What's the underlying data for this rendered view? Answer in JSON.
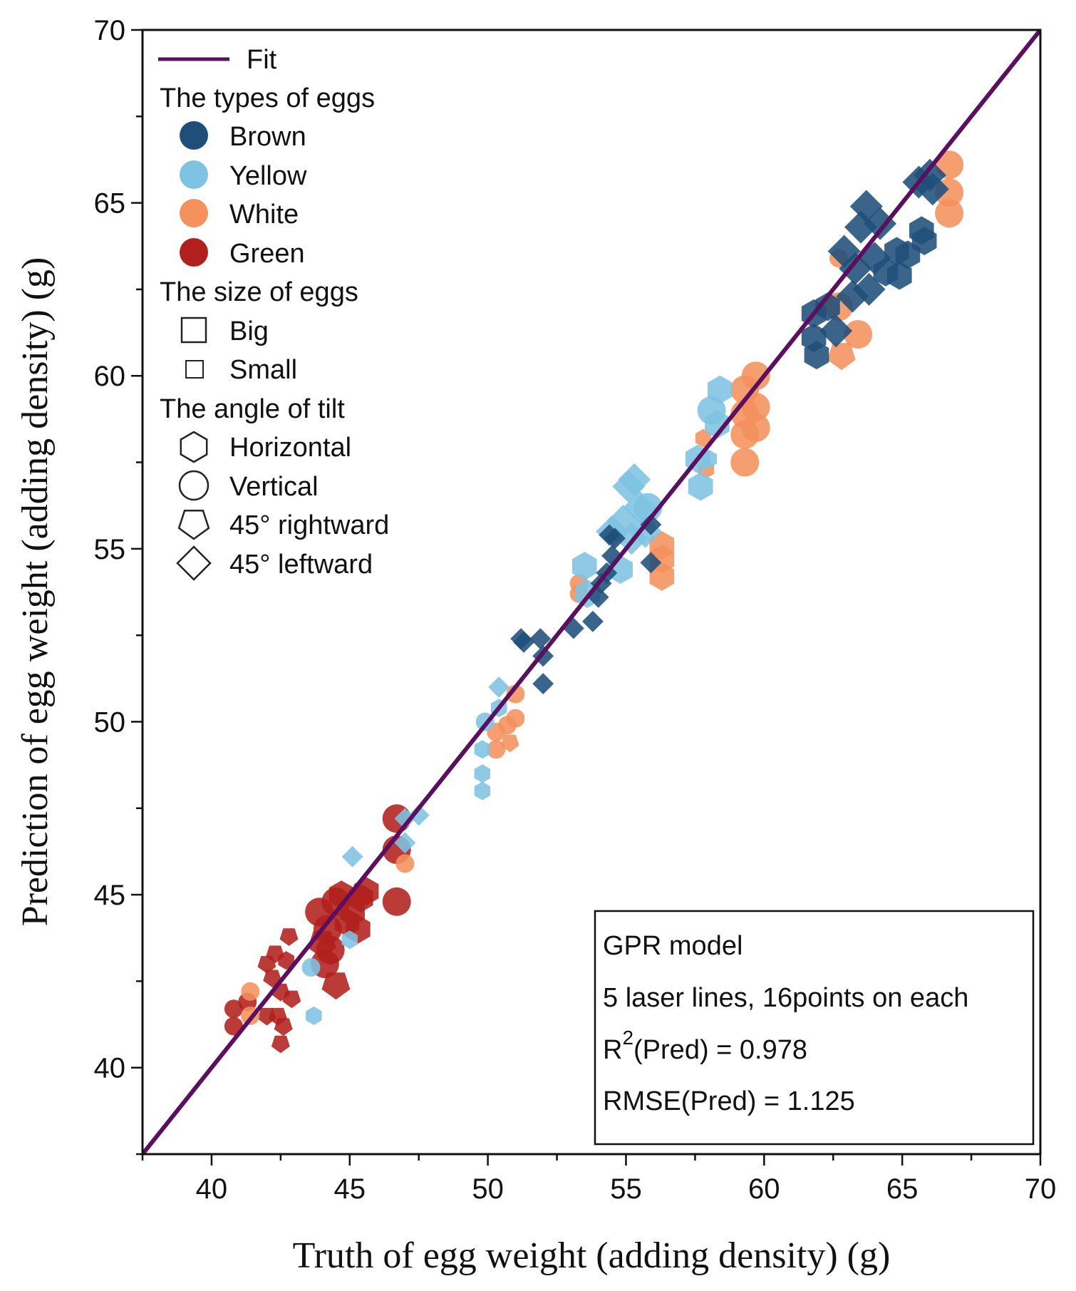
{
  "chart_data": {
    "type": "scatter",
    "xlabel": "Truth of egg weight (adding density) (g)",
    "ylabel": "Prediction of egg weight (adding density) (g)",
    "xlim": [
      37.5,
      70
    ],
    "ylim": [
      37.5,
      70
    ],
    "xticks": [
      40,
      45,
      50,
      55,
      60,
      65,
      70
    ],
    "yticks": [
      40,
      45,
      50,
      55,
      60,
      65,
      70
    ],
    "fit": {
      "label": "Fit",
      "x": [
        37.5,
        70
      ],
      "y": [
        37.5,
        70
      ],
      "color": "#5a0f5f"
    },
    "legend": {
      "types_title": "The types of eggs",
      "types": [
        {
          "label": "Brown",
          "color": "#1f4e79"
        },
        {
          "label": "Yellow",
          "color": "#7ec3e3"
        },
        {
          "label": "White",
          "color": "#f4915c"
        },
        {
          "label": "Green",
          "color": "#b0201c"
        }
      ],
      "size_title": "The size of eggs",
      "sizes": [
        {
          "label": "Big",
          "size": "big"
        },
        {
          "label": "Small",
          "size": "small"
        }
      ],
      "angle_title": "The angle of tilt",
      "angles": [
        {
          "label": "Horizontal",
          "shape": "hexagon"
        },
        {
          "label": "Vertical",
          "shape": "circle"
        },
        {
          "label": "45° rightward",
          "shape": "pentagon"
        },
        {
          "label": "45° leftward",
          "shape": "diamond"
        }
      ]
    },
    "stats": {
      "model": "GPR model",
      "setup": "5 laser lines, 16points on each",
      "r2_prefix": "R",
      "r2_sup": "2",
      "r2_rest": "(Pred) = 0.978",
      "rmse": "RMSE(Pred) = 1.125"
    },
    "series": [
      {
        "name": "Green",
        "color": "#b0201c",
        "points": [
          {
            "x": 40.8,
            "y": 41.7,
            "shape": "circle",
            "size": "small"
          },
          {
            "x": 40.8,
            "y": 41.2,
            "shape": "circle",
            "size": "small"
          },
          {
            "x": 41.3,
            "y": 41.9,
            "shape": "circle",
            "size": "small"
          },
          {
            "x": 42.0,
            "y": 43.0,
            "shape": "pentagon",
            "size": "small"
          },
          {
            "x": 42.2,
            "y": 42.6,
            "shape": "pentagon",
            "size": "small"
          },
          {
            "x": 42.3,
            "y": 43.3,
            "shape": "pentagon",
            "size": "small"
          },
          {
            "x": 42.5,
            "y": 42.2,
            "shape": "pentagon",
            "size": "small"
          },
          {
            "x": 42.4,
            "y": 41.5,
            "shape": "pentagon",
            "size": "small"
          },
          {
            "x": 42.6,
            "y": 41.2,
            "shape": "pentagon",
            "size": "small"
          },
          {
            "x": 42.5,
            "y": 40.7,
            "shape": "pentagon",
            "size": "small"
          },
          {
            "x": 42.8,
            "y": 43.8,
            "shape": "pentagon",
            "size": "small"
          },
          {
            "x": 42.9,
            "y": 42.0,
            "shape": "pentagon",
            "size": "small"
          },
          {
            "x": 42.0,
            "y": 41.5,
            "shape": "pentagon",
            "size": "small"
          },
          {
            "x": 42.7,
            "y": 43.1,
            "shape": "hexagon",
            "size": "small"
          },
          {
            "x": 43.9,
            "y": 44.5,
            "shape": "circle",
            "size": "big"
          },
          {
            "x": 44.1,
            "y": 43.0,
            "shape": "circle",
            "size": "big"
          },
          {
            "x": 44.3,
            "y": 43.4,
            "shape": "circle",
            "size": "big"
          },
          {
            "x": 44.5,
            "y": 44.8,
            "shape": "circle",
            "size": "big"
          },
          {
            "x": 44.2,
            "y": 44.0,
            "shape": "circle",
            "size": "big"
          },
          {
            "x": 44.9,
            "y": 44.2,
            "shape": "hexagon",
            "size": "big"
          },
          {
            "x": 45.1,
            "y": 44.5,
            "shape": "hexagon",
            "size": "big"
          },
          {
            "x": 45.4,
            "y": 44.9,
            "shape": "hexagon",
            "size": "big"
          },
          {
            "x": 45.6,
            "y": 45.1,
            "shape": "hexagon",
            "size": "big"
          },
          {
            "x": 45.3,
            "y": 44.0,
            "shape": "hexagon",
            "size": "big"
          },
          {
            "x": 44.7,
            "y": 45.0,
            "shape": "hexagon",
            "size": "big"
          },
          {
            "x": 44.5,
            "y": 42.4,
            "shape": "pentagon",
            "size": "big"
          },
          {
            "x": 44.0,
            "y": 43.6,
            "shape": "pentagon",
            "size": "big"
          },
          {
            "x": 46.7,
            "y": 47.2,
            "shape": "circle",
            "size": "big"
          },
          {
            "x": 46.7,
            "y": 46.3,
            "shape": "circle",
            "size": "big"
          },
          {
            "x": 46.7,
            "y": 44.8,
            "shape": "circle",
            "size": "big"
          }
        ]
      },
      {
        "name": "White",
        "color": "#f4915c",
        "points": [
          {
            "x": 41.4,
            "y": 42.2,
            "shape": "circle",
            "size": "small"
          },
          {
            "x": 41.4,
            "y": 41.5,
            "shape": "circle",
            "size": "small"
          },
          {
            "x": 47.0,
            "y": 45.9,
            "shape": "circle",
            "size": "small"
          },
          {
            "x": 50.3,
            "y": 49.7,
            "shape": "circle",
            "size": "small"
          },
          {
            "x": 50.3,
            "y": 49.2,
            "shape": "circle",
            "size": "small"
          },
          {
            "x": 50.7,
            "y": 49.9,
            "shape": "circle",
            "size": "small"
          },
          {
            "x": 51.0,
            "y": 50.8,
            "shape": "circle",
            "size": "small"
          },
          {
            "x": 51.0,
            "y": 50.1,
            "shape": "circle",
            "size": "small"
          },
          {
            "x": 50.8,
            "y": 49.4,
            "shape": "pentagon",
            "size": "small"
          },
          {
            "x": 53.3,
            "y": 54.0,
            "shape": "circle",
            "size": "small"
          },
          {
            "x": 53.3,
            "y": 53.7,
            "shape": "circle",
            "size": "small"
          },
          {
            "x": 56.3,
            "y": 55.1,
            "shape": "hexagon",
            "size": "big"
          },
          {
            "x": 56.3,
            "y": 54.7,
            "shape": "hexagon",
            "size": "big"
          },
          {
            "x": 56.3,
            "y": 54.2,
            "shape": "hexagon",
            "size": "big"
          },
          {
            "x": 57.8,
            "y": 58.2,
            "shape": "hexagon",
            "size": "small"
          },
          {
            "x": 57.9,
            "y": 57.3,
            "shape": "hexagon",
            "size": "small"
          },
          {
            "x": 59.3,
            "y": 59.6,
            "shape": "circle",
            "size": "big"
          },
          {
            "x": 59.3,
            "y": 58.9,
            "shape": "circle",
            "size": "big"
          },
          {
            "x": 59.3,
            "y": 58.3,
            "shape": "circle",
            "size": "big"
          },
          {
            "x": 59.3,
            "y": 57.5,
            "shape": "circle",
            "size": "big"
          },
          {
            "x": 59.7,
            "y": 60.0,
            "shape": "circle",
            "size": "big"
          },
          {
            "x": 59.7,
            "y": 59.1,
            "shape": "circle",
            "size": "big"
          },
          {
            "x": 59.7,
            "y": 58.5,
            "shape": "circle",
            "size": "big"
          },
          {
            "x": 62.7,
            "y": 63.4,
            "shape": "circle",
            "size": "small"
          },
          {
            "x": 62.7,
            "y": 62.0,
            "shape": "circle",
            "size": "big"
          },
          {
            "x": 62.8,
            "y": 60.6,
            "shape": "pentagon",
            "size": "big"
          },
          {
            "x": 63.4,
            "y": 61.2,
            "shape": "circle",
            "size": "big"
          },
          {
            "x": 66.7,
            "y": 66.1,
            "shape": "circle",
            "size": "big"
          },
          {
            "x": 66.7,
            "y": 65.3,
            "shape": "circle",
            "size": "big"
          },
          {
            "x": 66.7,
            "y": 64.7,
            "shape": "circle",
            "size": "big"
          }
        ]
      },
      {
        "name": "Yellow",
        "color": "#7ec3e3",
        "points": [
          {
            "x": 43.7,
            "y": 41.5,
            "shape": "hexagon",
            "size": "small"
          },
          {
            "x": 43.6,
            "y": 42.9,
            "shape": "circle",
            "size": "small"
          },
          {
            "x": 45.0,
            "y": 43.7,
            "shape": "hexagon",
            "size": "small"
          },
          {
            "x": 45.1,
            "y": 46.1,
            "shape": "diamond",
            "size": "small"
          },
          {
            "x": 47.0,
            "y": 46.5,
            "shape": "diamond",
            "size": "small"
          },
          {
            "x": 47.0,
            "y": 47.2,
            "shape": "diamond",
            "size": "small"
          },
          {
            "x": 47.5,
            "y": 47.3,
            "shape": "diamond",
            "size": "small"
          },
          {
            "x": 49.8,
            "y": 48.0,
            "shape": "hexagon",
            "size": "small"
          },
          {
            "x": 49.8,
            "y": 48.5,
            "shape": "hexagon",
            "size": "small"
          },
          {
            "x": 49.8,
            "y": 49.2,
            "shape": "hexagon",
            "size": "small"
          },
          {
            "x": 49.9,
            "y": 50.0,
            "shape": "circle",
            "size": "small"
          },
          {
            "x": 50.4,
            "y": 50.4,
            "shape": "hexagon",
            "size": "small"
          },
          {
            "x": 50.4,
            "y": 51.0,
            "shape": "diamond",
            "size": "small"
          },
          {
            "x": 53.5,
            "y": 54.5,
            "shape": "hexagon",
            "size": "big"
          },
          {
            "x": 53.6,
            "y": 53.7,
            "shape": "hexagon",
            "size": "big"
          },
          {
            "x": 54.5,
            "y": 55.5,
            "shape": "diamond",
            "size": "big"
          },
          {
            "x": 54.9,
            "y": 55.8,
            "shape": "diamond",
            "size": "big"
          },
          {
            "x": 55.1,
            "y": 56.8,
            "shape": "diamond",
            "size": "big"
          },
          {
            "x": 55.3,
            "y": 57.0,
            "shape": "diamond",
            "size": "big"
          },
          {
            "x": 55.2,
            "y": 55.3,
            "shape": "diamond",
            "size": "big"
          },
          {
            "x": 55.5,
            "y": 56.2,
            "shape": "diamond",
            "size": "big"
          },
          {
            "x": 55.7,
            "y": 55.5,
            "shape": "diamond",
            "size": "big"
          },
          {
            "x": 54.8,
            "y": 54.4,
            "shape": "hexagon",
            "size": "big"
          },
          {
            "x": 55.8,
            "y": 56.2,
            "shape": "circle",
            "size": "big"
          },
          {
            "x": 57.6,
            "y": 57.6,
            "shape": "hexagon",
            "size": "big"
          },
          {
            "x": 57.7,
            "y": 56.8,
            "shape": "hexagon",
            "size": "big"
          },
          {
            "x": 58.1,
            "y": 59.0,
            "shape": "circle",
            "size": "big"
          },
          {
            "x": 58.3,
            "y": 58.6,
            "shape": "hexagon",
            "size": "big"
          },
          {
            "x": 58.4,
            "y": 59.6,
            "shape": "hexagon",
            "size": "big"
          },
          {
            "x": 58.0,
            "y": 57.6,
            "shape": "hexagon",
            "size": "small"
          }
        ]
      },
      {
        "name": "Brown",
        "color": "#1f4e79",
        "points": [
          {
            "x": 51.2,
            "y": 52.4,
            "shape": "diamond",
            "size": "small"
          },
          {
            "x": 51.3,
            "y": 52.3,
            "shape": "diamond",
            "size": "small"
          },
          {
            "x": 51.9,
            "y": 52.4,
            "shape": "diamond",
            "size": "small"
          },
          {
            "x": 52.0,
            "y": 51.1,
            "shape": "diamond",
            "size": "small"
          },
          {
            "x": 52.0,
            "y": 51.9,
            "shape": "diamond",
            "size": "small"
          },
          {
            "x": 53.1,
            "y": 52.7,
            "shape": "diamond",
            "size": "small"
          },
          {
            "x": 53.8,
            "y": 52.9,
            "shape": "diamond",
            "size": "small"
          },
          {
            "x": 54.0,
            "y": 53.6,
            "shape": "diamond",
            "size": "small"
          },
          {
            "x": 54.1,
            "y": 54.0,
            "shape": "diamond",
            "size": "small"
          },
          {
            "x": 54.3,
            "y": 54.3,
            "shape": "diamond",
            "size": "small"
          },
          {
            "x": 54.5,
            "y": 54.8,
            "shape": "diamond",
            "size": "small"
          },
          {
            "x": 54.6,
            "y": 55.3,
            "shape": "diamond",
            "size": "small"
          },
          {
            "x": 54.4,
            "y": 55.4,
            "shape": "diamond",
            "size": "small"
          },
          {
            "x": 55.9,
            "y": 55.7,
            "shape": "diamond",
            "size": "small"
          },
          {
            "x": 55.9,
            "y": 54.6,
            "shape": "diamond",
            "size": "small"
          },
          {
            "x": 61.8,
            "y": 61.8,
            "shape": "hexagon",
            "size": "big"
          },
          {
            "x": 61.8,
            "y": 61.1,
            "shape": "hexagon",
            "size": "big"
          },
          {
            "x": 61.9,
            "y": 60.6,
            "shape": "hexagon",
            "size": "big"
          },
          {
            "x": 62.3,
            "y": 62.0,
            "shape": "hexagon",
            "size": "big"
          },
          {
            "x": 62.6,
            "y": 61.3,
            "shape": "diamond",
            "size": "big"
          },
          {
            "x": 62.9,
            "y": 63.6,
            "shape": "diamond",
            "size": "big"
          },
          {
            "x": 63.2,
            "y": 62.3,
            "shape": "diamond",
            "size": "big"
          },
          {
            "x": 63.3,
            "y": 63.1,
            "shape": "diamond",
            "size": "big"
          },
          {
            "x": 63.5,
            "y": 64.3,
            "shape": "diamond",
            "size": "big"
          },
          {
            "x": 63.7,
            "y": 64.9,
            "shape": "diamond",
            "size": "big"
          },
          {
            "x": 63.8,
            "y": 62.5,
            "shape": "diamond",
            "size": "big"
          },
          {
            "x": 64.0,
            "y": 63.4,
            "shape": "diamond",
            "size": "big"
          },
          {
            "x": 64.2,
            "y": 64.4,
            "shape": "diamond",
            "size": "big"
          },
          {
            "x": 64.4,
            "y": 63.0,
            "shape": "hexagon",
            "size": "big"
          },
          {
            "x": 64.8,
            "y": 63.6,
            "shape": "hexagon",
            "size": "big"
          },
          {
            "x": 64.9,
            "y": 62.9,
            "shape": "hexagon",
            "size": "big"
          },
          {
            "x": 65.2,
            "y": 63.5,
            "shape": "hexagon",
            "size": "big"
          },
          {
            "x": 65.7,
            "y": 64.2,
            "shape": "hexagon",
            "size": "big"
          },
          {
            "x": 65.8,
            "y": 63.9,
            "shape": "hexagon",
            "size": "big"
          },
          {
            "x": 65.6,
            "y": 65.6,
            "shape": "diamond",
            "size": "big"
          },
          {
            "x": 66.0,
            "y": 65.8,
            "shape": "diamond",
            "size": "big"
          },
          {
            "x": 66.1,
            "y": 65.4,
            "shape": "diamond",
            "size": "big"
          }
        ]
      }
    ]
  }
}
